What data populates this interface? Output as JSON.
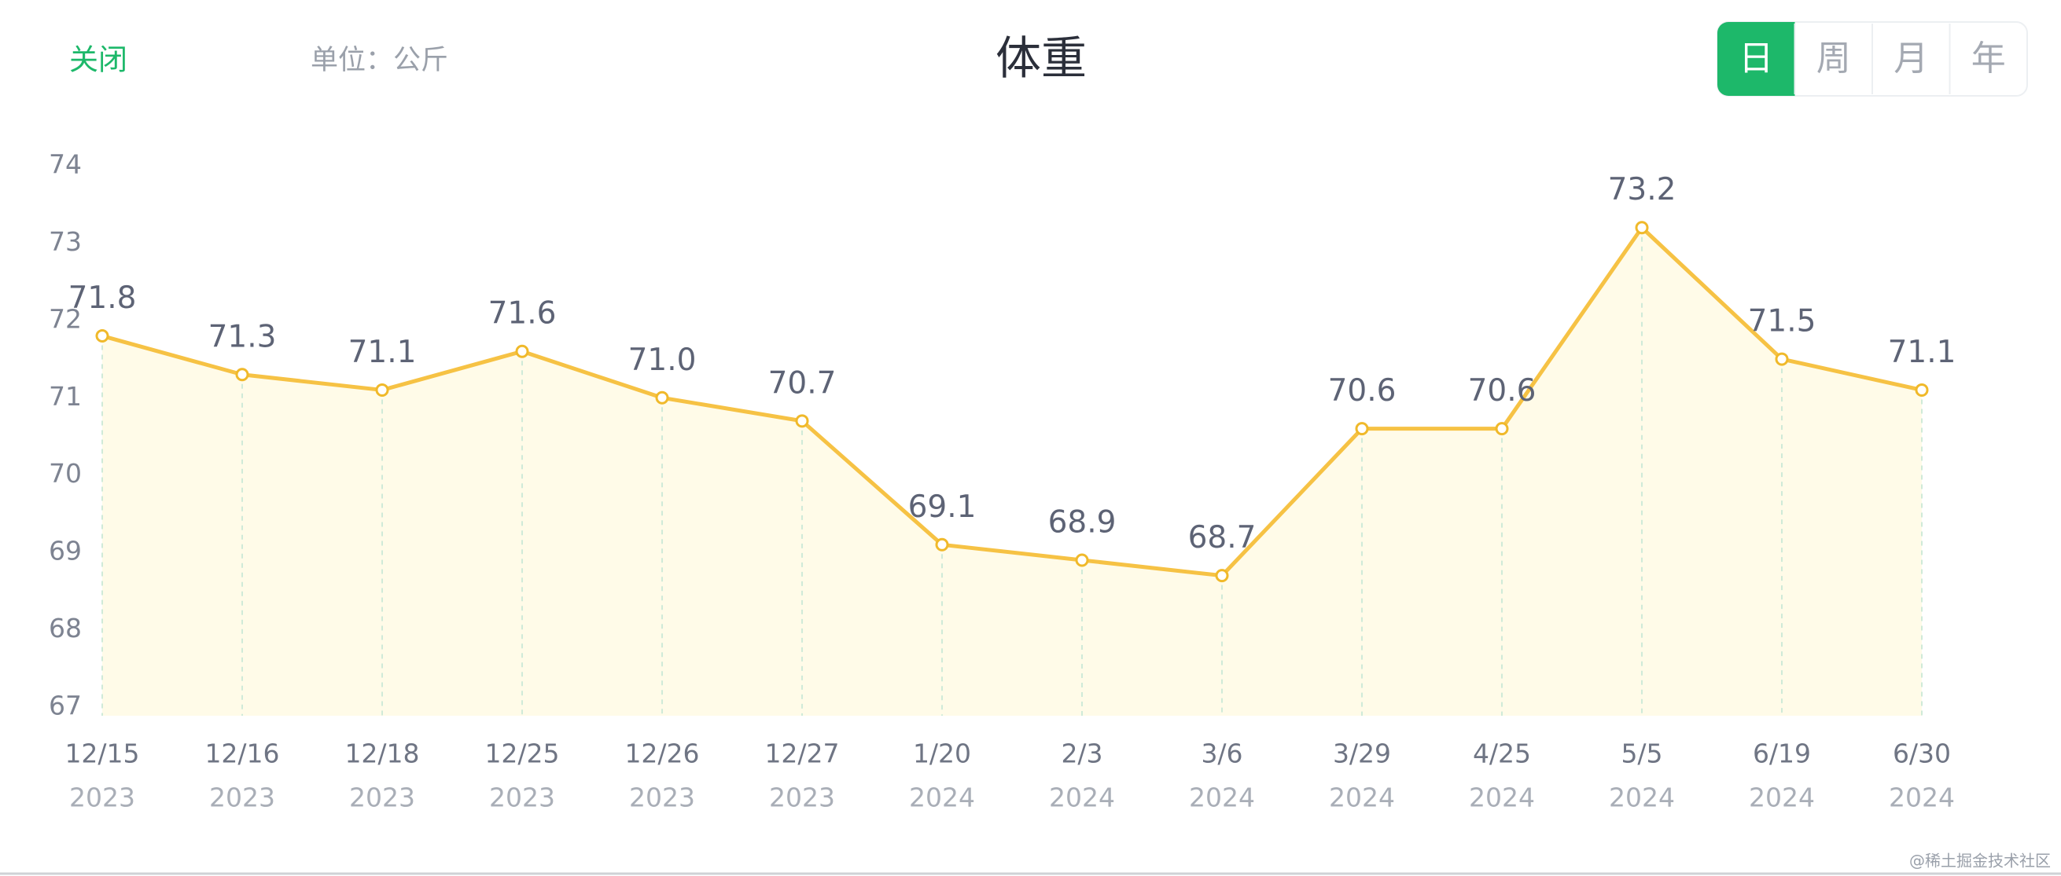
{
  "header": {
    "close": "关闭",
    "unit": "单位：公斤",
    "tabs": [
      "日",
      "周",
      "月",
      "年"
    ]
  },
  "chart_data": {
    "type": "line",
    "title": "体重",
    "categories": [
      "12/15",
      "12/16",
      "12/18",
      "12/25",
      "12/26",
      "12/27",
      "1/20",
      "2/3",
      "3/6",
      "3/29",
      "4/25",
      "5/5",
      "6/19",
      "6/30"
    ],
    "category_years": [
      "2023",
      "2023",
      "2023",
      "2023",
      "2023",
      "2023",
      "2024",
      "2024",
      "2024",
      "2024",
      "2024",
      "2024",
      "2024",
      "2024"
    ],
    "values": [
      71.8,
      71.3,
      71.1,
      71.6,
      71.0,
      70.7,
      69.1,
      68.9,
      68.7,
      70.6,
      70.6,
      73.2,
      71.5,
      71.1
    ],
    "value_labels": [
      "71.8",
      "71.3",
      "71.1",
      "71.6",
      "71.0",
      "70.7",
      "69.1",
      "68.9",
      "68.7",
      "70.6",
      "70.6",
      "73.2",
      "71.5",
      "71.1"
    ],
    "color": "#f6c244",
    "ylim": [
      67,
      74
    ],
    "yticks": [
      67,
      68,
      69,
      70,
      71,
      72,
      73,
      74
    ]
  },
  "watermark": "@稀土掘金技术社区"
}
